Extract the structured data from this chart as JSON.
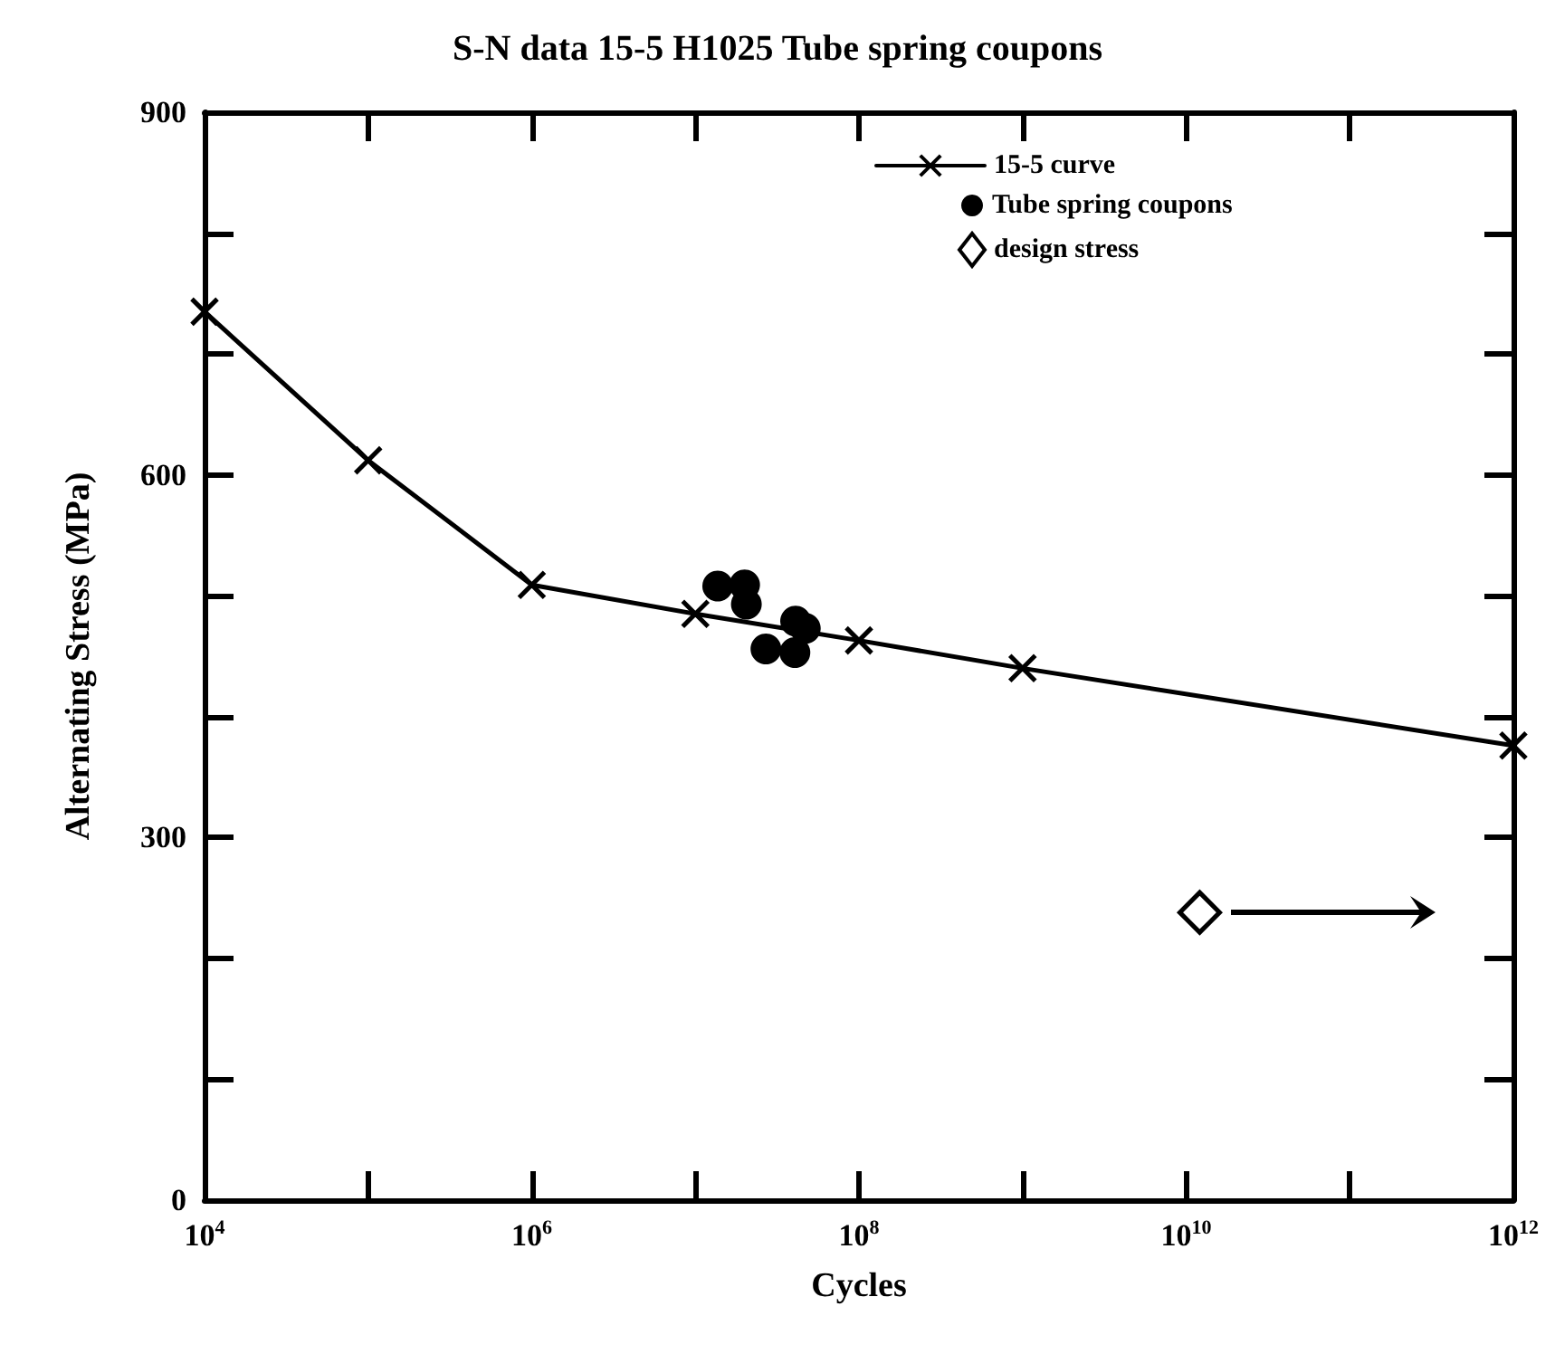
{
  "chart_data": {
    "type": "line",
    "title": "S-N data 15-5 H1025 Tube spring coupons",
    "xlabel": "Cycles",
    "ylabel": "Alternating Stress (MPa)",
    "log": "x",
    "xlim": [
      10000,
      1000000000000
    ],
    "ylim": [
      0,
      900
    ],
    "xticks": [
      {
        "value": 10000,
        "label": "10$^{4}$"
      },
      {
        "value": 100000,
        "label": null
      },
      {
        "value": 1000000,
        "label": "10$^{6}$"
      },
      {
        "value": 10000000,
        "label": null
      },
      {
        "value": 100000000,
        "label": "10$^{8}$"
      },
      {
        "value": 1000000000,
        "label": null
      },
      {
        "value": 10000000000,
        "label": "10$^{10}$"
      },
      {
        "value": 100000000000,
        "label": null
      },
      {
        "value": 1000000000000,
        "label": "10$^{12}$"
      }
    ],
    "yticks": [
      0,
      {
        "value": 100,
        "label": null
      },
      {
        "value": 200,
        "label": null
      },
      300,
      {
        "value": 400,
        "label": null
      },
      {
        "value": 500,
        "label": null
      },
      600,
      {
        "value": 700,
        "label": null
      },
      {
        "value": 800,
        "label": null
      },
      900
    ],
    "grid": false,
    "legend": "top right",
    "series": [
      {
        "name": "15-5 curve",
        "marker": "cross",
        "line_style": "solid",
        "color": "#000000",
        "x": [
          10000,
          100000,
          1000000,
          10000000,
          100000000,
          1000000000,
          1000000000000
        ],
        "values": [
          735,
          612,
          509,
          485,
          463,
          440,
          376
        ]
      },
      {
        "name": "Tube spring coupons",
        "type": "scatter",
        "marker": "circle",
        "color": "#000000",
        "x": [
          13700000,
          20000000,
          20500000,
          41000000,
          47000000,
          27000000,
          40600000
        ],
        "values": [
          508,
          509,
          493,
          479,
          473,
          456,
          453
        ]
      },
      {
        "name": "design stress",
        "type": "scatter",
        "marker": "diamond",
        "color": "#000000",
        "x": [
          12100000000
        ],
        "values": [
          238
        ]
      }
    ]
  }
}
